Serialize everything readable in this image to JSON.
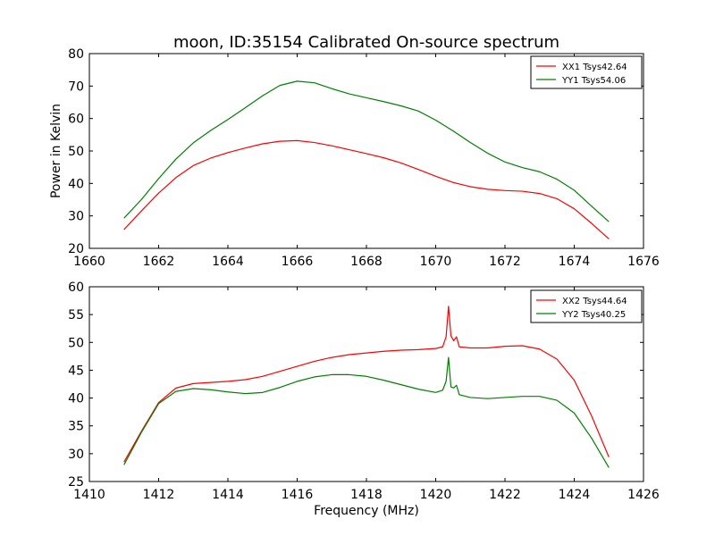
{
  "figure": {
    "title": "moon, ID:35154 Calibrated On-source spectrum",
    "ylabel": "Power in Kelvin",
    "xlabel": "Frequency (MHz)"
  },
  "chart_data": [
    {
      "type": "line",
      "xlim": [
        1660,
        1676
      ],
      "ylim": [
        20,
        80
      ],
      "xticks": [
        1660,
        1662,
        1664,
        1666,
        1668,
        1670,
        1672,
        1674,
        1676
      ],
      "yticks": [
        20,
        30,
        40,
        50,
        60,
        70,
        80
      ],
      "legend_position": "top-right",
      "colors": {
        "XX1": "#ff0000",
        "YY1": "#008000"
      },
      "series": [
        {
          "name": "XX1 Tsys42.64",
          "color": "#ff0000",
          "x": [
            1661.0,
            1661.5,
            1662.0,
            1662.5,
            1663.0,
            1663.5,
            1664.0,
            1664.5,
            1665.0,
            1665.5,
            1666.0,
            1666.5,
            1667.0,
            1667.5,
            1668.0,
            1668.5,
            1669.0,
            1669.5,
            1670.0,
            1670.5,
            1671.0,
            1671.5,
            1672.0,
            1672.5,
            1673.0,
            1673.5,
            1674.0,
            1674.5,
            1675.0
          ],
          "y": [
            25.8,
            31.5,
            37.0,
            41.8,
            45.5,
            47.8,
            49.5,
            50.9,
            52.2,
            53.0,
            53.2,
            52.6,
            51.6,
            50.4,
            49.2,
            47.9,
            46.3,
            44.3,
            42.2,
            40.3,
            39.0,
            38.2,
            37.8,
            37.6,
            36.9,
            35.3,
            32.2,
            27.7,
            22.9
          ]
        },
        {
          "name": "YY1 Tsys54.06",
          "color": "#008000",
          "x": [
            1661.0,
            1661.5,
            1662.0,
            1662.5,
            1663.0,
            1663.5,
            1664.0,
            1664.5,
            1665.0,
            1665.5,
            1666.0,
            1666.5,
            1667.0,
            1667.5,
            1668.0,
            1668.5,
            1669.0,
            1669.5,
            1670.0,
            1670.5,
            1671.0,
            1671.5,
            1672.0,
            1672.5,
            1673.0,
            1673.5,
            1674.0,
            1674.5,
            1675.0
          ],
          "y": [
            29.3,
            35.0,
            41.5,
            47.5,
            52.5,
            56.3,
            59.7,
            63.3,
            67.0,
            70.2,
            71.5,
            71.0,
            69.2,
            67.6,
            66.4,
            65.2,
            63.9,
            62.3,
            59.5,
            56.2,
            52.6,
            49.3,
            46.6,
            44.9,
            43.6,
            41.3,
            37.9,
            33.0,
            28.2
          ]
        }
      ]
    },
    {
      "type": "line",
      "xlim": [
        1410,
        1426
      ],
      "ylim": [
        25,
        60
      ],
      "xticks": [
        1410,
        1412,
        1414,
        1416,
        1418,
        1420,
        1422,
        1424,
        1426
      ],
      "yticks": [
        25,
        30,
        35,
        40,
        45,
        50,
        55,
        60
      ],
      "legend_position": "top-right",
      "colors": {
        "XX2": "#ff0000",
        "YY2": "#008000"
      },
      "series": [
        {
          "name": "XX2 Tsys44.64",
          "color": "#ff0000",
          "x": [
            1411.0,
            1411.5,
            1412.0,
            1412.5,
            1413.0,
            1413.5,
            1414.0,
            1414.5,
            1415.0,
            1415.5,
            1416.0,
            1416.5,
            1417.0,
            1417.5,
            1418.0,
            1418.5,
            1419.0,
            1419.5,
            1420.0,
            1420.2,
            1420.3,
            1420.37,
            1420.44,
            1420.52,
            1420.6,
            1420.68,
            1421.0,
            1421.5,
            1422.0,
            1422.5,
            1423.0,
            1423.5,
            1424.0,
            1424.5,
            1425.0
          ],
          "y": [
            28.5,
            34.0,
            39.2,
            41.8,
            42.6,
            42.8,
            43.0,
            43.3,
            43.9,
            44.8,
            45.7,
            46.6,
            47.3,
            47.8,
            48.1,
            48.4,
            48.6,
            48.7,
            48.9,
            49.2,
            51.0,
            56.5,
            51.2,
            50.3,
            51.0,
            49.2,
            49.0,
            49.0,
            49.3,
            49.4,
            48.8,
            47.0,
            43.2,
            36.8,
            29.4
          ]
        },
        {
          "name": "YY2 Tsys40.25",
          "color": "#008000",
          "x": [
            1411.0,
            1411.5,
            1412.0,
            1412.5,
            1413.0,
            1413.5,
            1414.0,
            1414.5,
            1415.0,
            1415.5,
            1416.0,
            1416.5,
            1417.0,
            1417.5,
            1418.0,
            1418.5,
            1419.0,
            1419.5,
            1420.0,
            1420.2,
            1420.3,
            1420.37,
            1420.44,
            1420.52,
            1420.6,
            1420.68,
            1421.0,
            1421.5,
            1422.0,
            1422.5,
            1423.0,
            1423.5,
            1424.0,
            1424.5,
            1425.0
          ],
          "y": [
            28.0,
            33.8,
            39.0,
            41.2,
            41.7,
            41.5,
            41.1,
            40.8,
            41.0,
            41.9,
            43.0,
            43.8,
            44.2,
            44.2,
            43.9,
            43.2,
            42.4,
            41.6,
            41.0,
            41.4,
            43.0,
            47.3,
            42.0,
            41.8,
            42.3,
            40.6,
            40.1,
            39.9,
            40.1,
            40.3,
            40.3,
            39.6,
            37.3,
            32.8,
            27.5
          ]
        }
      ]
    }
  ]
}
